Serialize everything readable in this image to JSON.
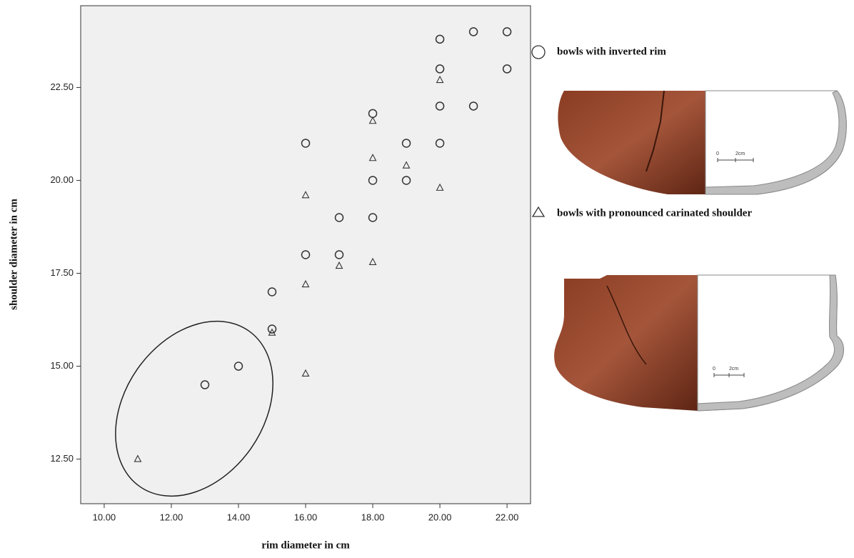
{
  "chart_data": {
    "type": "scatter",
    "x_label": "rim diameter in cm",
    "y_label": "shoulder diameter in cm",
    "xlim": [
      9.3,
      22.7
    ],
    "ylim": [
      11.3,
      24.7
    ],
    "xticks": [
      {
        "value": 10,
        "label": "10.00"
      },
      {
        "value": 12,
        "label": "12.00"
      },
      {
        "value": 14,
        "label": "14.00"
      },
      {
        "value": 16,
        "label": "16.00"
      },
      {
        "value": 18,
        "label": "18.00"
      },
      {
        "value": 20,
        "label": "20.00"
      },
      {
        "value": 22,
        "label": "22.00"
      }
    ],
    "yticks": [
      {
        "value": 12.5,
        "label": "12.50"
      },
      {
        "value": 15,
        "label": "15.00"
      },
      {
        "value": 17.5,
        "label": "17.50"
      },
      {
        "value": 20,
        "label": "20.00"
      },
      {
        "value": 22.5,
        "label": "22.50"
      }
    ],
    "series": [
      {
        "name": "bowls with inverted rim",
        "marker": "circle",
        "color": "#333333",
        "x": [
          22,
          21,
          20,
          22,
          20,
          21,
          20,
          18,
          16,
          19,
          20,
          18,
          19,
          17,
          18,
          16,
          17,
          15,
          15,
          14,
          13
        ],
        "y": [
          24,
          24,
          23.8,
          23,
          23,
          22,
          22,
          21.8,
          21,
          21,
          21,
          20,
          20,
          19,
          19,
          18,
          18,
          17,
          16,
          15,
          14.5
        ]
      },
      {
        "name": "bowls with pronounced carinated shoulder",
        "marker": "triangle",
        "color": "#333333",
        "x": [
          20,
          18,
          18,
          19,
          20,
          16,
          17,
          18,
          16,
          15,
          16,
          11
        ],
        "y": [
          22.7,
          21.6,
          20.6,
          20.4,
          19.8,
          19.6,
          17.7,
          17.8,
          17.2,
          15.9,
          14.8,
          12.5
        ]
      }
    ]
  },
  "scale_labels": [
    "0",
    "2cm"
  ]
}
